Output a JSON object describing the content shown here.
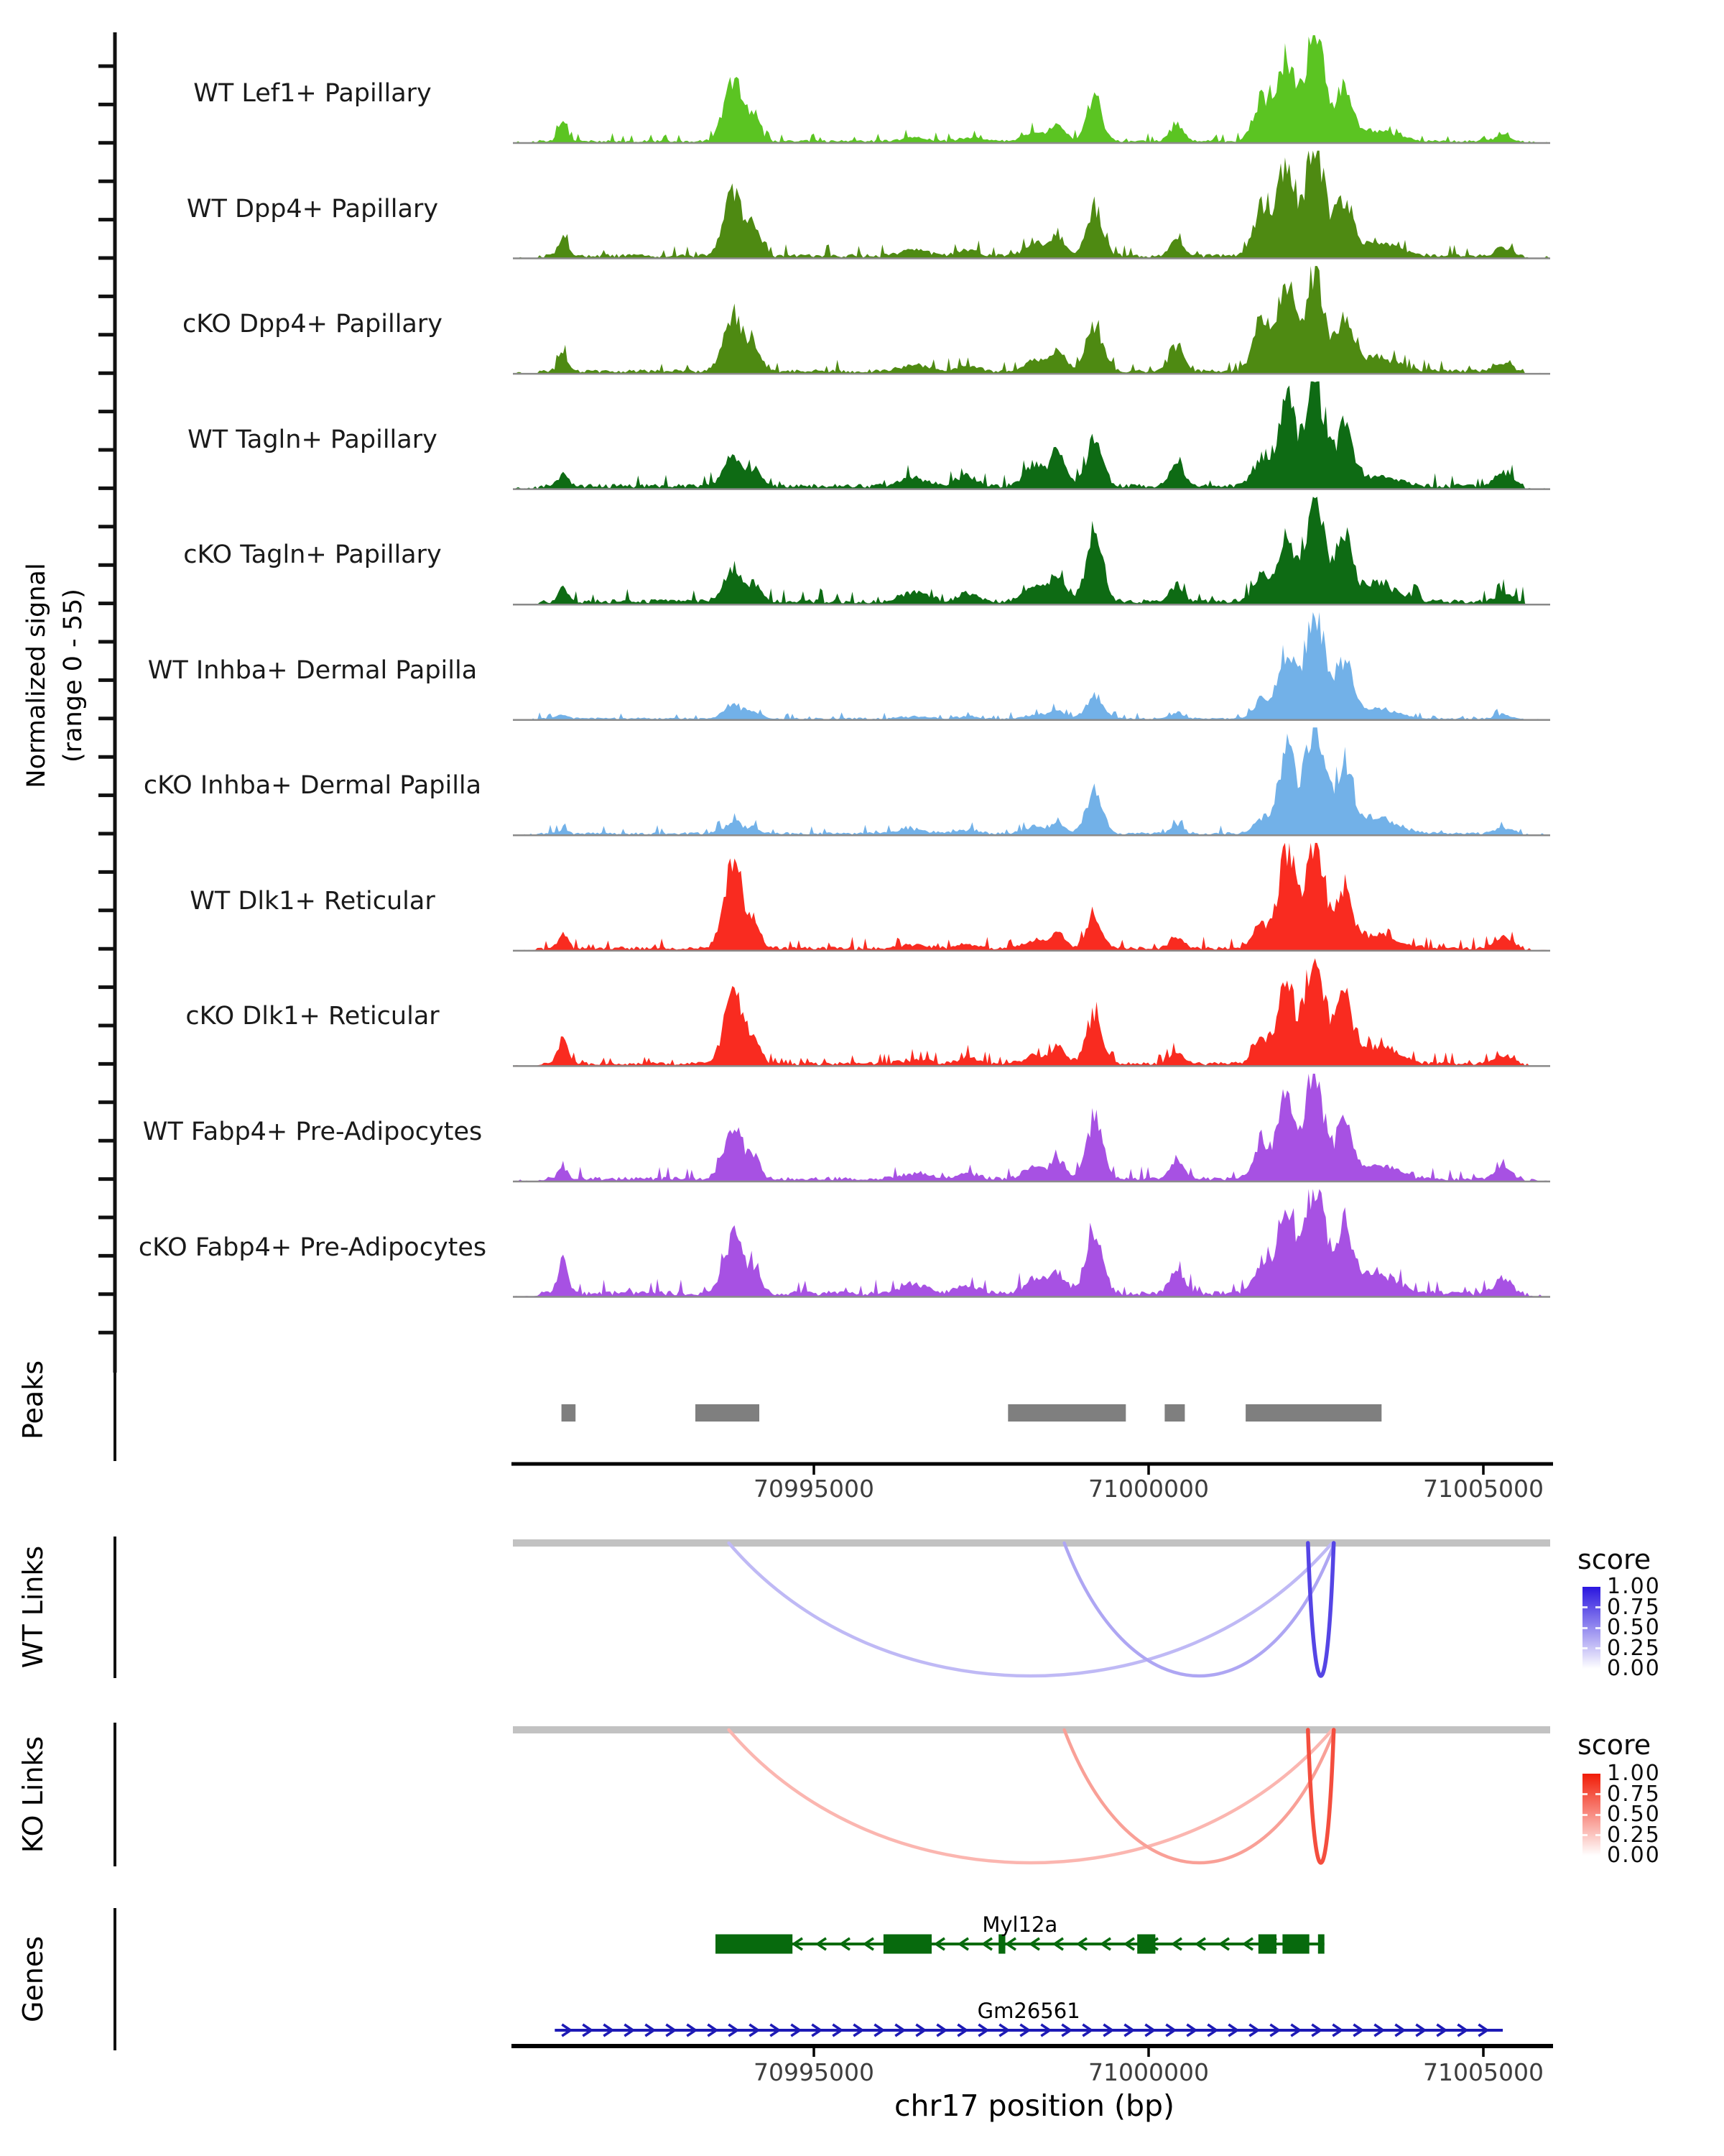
{
  "chart_data": {
    "type": "genome-tracks",
    "region": {
      "chrom": "chr17",
      "start": 70990500,
      "end": 71006000
    },
    "axis": {
      "title": "chr17 position (bp)",
      "ticks": [
        70995000,
        71000000,
        71005000
      ],
      "tick_labels": [
        "70995000",
        "71000000",
        "71005000"
      ]
    },
    "signal": {
      "ylabel_line1": "Normalized signal",
      "ylabel_line2": "(range 0 - 55)",
      "ymax": 55,
      "baseline_color": "#8a8a8a",
      "tracks": [
        {
          "label": "WT Lef1+ Papillary",
          "color": "#5bc422",
          "noise": 1.4,
          "peaks": [
            [
              70991250,
              70,
              9
            ],
            [
              70993800,
              140,
              30
            ],
            [
              70994120,
              90,
              12
            ],
            [
              70996500,
              200,
              2
            ],
            [
              70997300,
              150,
              2
            ],
            [
              70998300,
              160,
              5
            ],
            [
              70998650,
              110,
              8
            ],
            [
              70999190,
              120,
              20
            ],
            [
              71000420,
              100,
              9
            ],
            [
              71001700,
              130,
              22
            ],
            [
              71002060,
              120,
              42
            ],
            [
              71002480,
              140,
              55
            ],
            [
              71002920,
              120,
              26
            ],
            [
              71003400,
              300,
              5
            ],
            [
              71005300,
              120,
              3
            ]
          ]
        },
        {
          "label": "WT Dpp4+ Papillary",
          "color": "#4e8a12",
          "noise": 2.0,
          "peaks": [
            [
              70991250,
              70,
              9
            ],
            [
              70993800,
              140,
              32
            ],
            [
              70994120,
              90,
              14
            ],
            [
              70996500,
              200,
              3
            ],
            [
              70997300,
              150,
              3
            ],
            [
              70998300,
              160,
              6
            ],
            [
              70998650,
              110,
              9
            ],
            [
              70999190,
              120,
              24
            ],
            [
              71000420,
              100,
              8
            ],
            [
              71001700,
              130,
              24
            ],
            [
              71002060,
              120,
              46
            ],
            [
              71002480,
              140,
              57
            ],
            [
              71002920,
              120,
              28
            ],
            [
              71003400,
              300,
              7
            ],
            [
              71005300,
              120,
              4
            ]
          ]
        },
        {
          "label": "cKO Dpp4+ Papillary",
          "color": "#4e8a12",
          "noise": 2.0,
          "peaks": [
            [
              70991250,
              70,
              8
            ],
            [
              70993800,
              140,
              30
            ],
            [
              70994120,
              90,
              12
            ],
            [
              70996500,
              200,
              3
            ],
            [
              70997300,
              150,
              3
            ],
            [
              70998300,
              160,
              6
            ],
            [
              70998650,
              110,
              10
            ],
            [
              70999190,
              120,
              23
            ],
            [
              71000420,
              100,
              12
            ],
            [
              71001700,
              130,
              28
            ],
            [
              71002060,
              120,
              42
            ],
            [
              71002480,
              140,
              52
            ],
            [
              71002920,
              120,
              26
            ],
            [
              71003400,
              300,
              7
            ],
            [
              71005300,
              120,
              4
            ]
          ]
        },
        {
          "label": "WT Tagln+ Papillary",
          "color": "#0e6b14",
          "noise": 2.4,
          "peaks": [
            [
              70991250,
              70,
              6
            ],
            [
              70993800,
              140,
              14
            ],
            [
              70994120,
              90,
              8
            ],
            [
              70996500,
              200,
              4
            ],
            [
              70997300,
              150,
              5
            ],
            [
              70998300,
              160,
              10
            ],
            [
              70998650,
              110,
              16
            ],
            [
              70999190,
              120,
              24
            ],
            [
              71000420,
              100,
              13
            ],
            [
              71001700,
              130,
              15
            ],
            [
              71002060,
              120,
              44
            ],
            [
              71002480,
              140,
              55
            ],
            [
              71002920,
              120,
              28
            ],
            [
              71003400,
              300,
              5
            ],
            [
              71005300,
              120,
              7
            ]
          ]
        },
        {
          "label": "cKO Tagln+ Papillary",
          "color": "#0e6b14",
          "noise": 2.4,
          "peaks": [
            [
              70991250,
              70,
              7
            ],
            [
              70993800,
              140,
              16
            ],
            [
              70994120,
              90,
              8
            ],
            [
              70996500,
              200,
              5
            ],
            [
              70997300,
              150,
              4
            ],
            [
              70998300,
              160,
              8
            ],
            [
              70998650,
              110,
              12
            ],
            [
              70999190,
              120,
              36
            ],
            [
              71000420,
              100,
              8
            ],
            [
              71001700,
              130,
              13
            ],
            [
              71002060,
              120,
              30
            ],
            [
              71002480,
              140,
              52
            ],
            [
              71002920,
              120,
              30
            ],
            [
              71003400,
              300,
              9
            ],
            [
              71005300,
              120,
              4
            ]
          ]
        },
        {
          "label": "WT Inhba+ Dermal Papilla",
          "color": "#72b1e8",
          "noise": 1.1,
          "peaks": [
            [
              70991250,
              70,
              2
            ],
            [
              70993800,
              140,
              7
            ],
            [
              70994120,
              90,
              3
            ],
            [
              70996500,
              200,
              1
            ],
            [
              70997300,
              150,
              1
            ],
            [
              70998300,
              160,
              2
            ],
            [
              70998650,
              110,
              4
            ],
            [
              70999190,
              120,
              11
            ],
            [
              71000420,
              100,
              3
            ],
            [
              71001700,
              130,
              10
            ],
            [
              71002060,
              120,
              34
            ],
            [
              71002480,
              140,
              55
            ],
            [
              71002920,
              120,
              28
            ],
            [
              71003400,
              300,
              5
            ],
            [
              71005300,
              120,
              2
            ]
          ]
        },
        {
          "label": "cKO Inhba+ Dermal Papilla",
          "color": "#72b1e8",
          "noise": 1.4,
          "peaks": [
            [
              70991250,
              70,
              2
            ],
            [
              70993800,
              140,
              6
            ],
            [
              70994120,
              90,
              3
            ],
            [
              70996500,
              200,
              2
            ],
            [
              70997300,
              150,
              2
            ],
            [
              70998300,
              160,
              3
            ],
            [
              70998650,
              110,
              5
            ],
            [
              70999190,
              120,
              21
            ],
            [
              71000420,
              100,
              4
            ],
            [
              71001700,
              130,
              8
            ],
            [
              71002060,
              120,
              42
            ],
            [
              71002480,
              140,
              55
            ],
            [
              71002920,
              120,
              34
            ],
            [
              71003400,
              300,
              8
            ],
            [
              71005300,
              120,
              3
            ]
          ]
        },
        {
          "label": "WT Dlk1+ Reticular",
          "color": "#f92b20",
          "noise": 1.9,
          "peaks": [
            [
              70991250,
              70,
              8
            ],
            [
              70993800,
              140,
              40
            ],
            [
              70994120,
              90,
              10
            ],
            [
              70996500,
              200,
              2
            ],
            [
              70997300,
              150,
              2
            ],
            [
              70998300,
              160,
              4
            ],
            [
              70998650,
              110,
              7
            ],
            [
              70999190,
              120,
              15
            ],
            [
              71000420,
              100,
              6
            ],
            [
              71001700,
              130,
              12
            ],
            [
              71002060,
              120,
              48
            ],
            [
              71002480,
              140,
              55
            ],
            [
              71002920,
              120,
              28
            ],
            [
              71003400,
              300,
              7
            ],
            [
              71005300,
              120,
              6
            ]
          ]
        },
        {
          "label": "cKO Dlk1+ Reticular",
          "color": "#f92b20",
          "noise": 1.9,
          "peaks": [
            [
              70991250,
              70,
              13
            ],
            [
              70993800,
              140,
              36
            ],
            [
              70994120,
              90,
              10
            ],
            [
              70996500,
              200,
              2
            ],
            [
              70997300,
              150,
              3
            ],
            [
              70998300,
              160,
              4
            ],
            [
              70998650,
              110,
              8
            ],
            [
              70999190,
              120,
              24
            ],
            [
              71000420,
              100,
              6
            ],
            [
              71001700,
              130,
              12
            ],
            [
              71002060,
              120,
              38
            ],
            [
              71002480,
              140,
              55
            ],
            [
              71002920,
              120,
              31
            ],
            [
              71003400,
              300,
              9
            ],
            [
              71005300,
              120,
              4
            ]
          ]
        },
        {
          "label": "WT Fabp4+ Pre-Adipocytes",
          "color": "#a751e3",
          "noise": 2.1,
          "peaks": [
            [
              70991250,
              70,
              6
            ],
            [
              70993800,
              140,
              28
            ],
            [
              70994120,
              90,
              9
            ],
            [
              70996500,
              200,
              3
            ],
            [
              70997300,
              150,
              3
            ],
            [
              70998300,
              160,
              6
            ],
            [
              70998650,
              110,
              9
            ],
            [
              70999190,
              120,
              29
            ],
            [
              71000420,
              100,
              10
            ],
            [
              71001700,
              130,
              17
            ],
            [
              71002060,
              120,
              40
            ],
            [
              71002480,
              140,
              55
            ],
            [
              71002920,
              120,
              24
            ],
            [
              71003400,
              300,
              7
            ],
            [
              71005300,
              120,
              6
            ]
          ]
        },
        {
          "label": "cKO Fabp4+ Pre-Adipocytes",
          "color": "#a751e3",
          "noise": 2.8,
          "peaks": [
            [
              70991250,
              70,
              16
            ],
            [
              70993800,
              140,
              29
            ],
            [
              70994120,
              90,
              10
            ],
            [
              70996500,
              200,
              5
            ],
            [
              70997300,
              150,
              4
            ],
            [
              70998300,
              160,
              7
            ],
            [
              70998650,
              110,
              10
            ],
            [
              70999190,
              120,
              34
            ],
            [
              71000420,
              100,
              12
            ],
            [
              71001700,
              130,
              15
            ],
            [
              71002060,
              120,
              46
            ],
            [
              71002480,
              140,
              55
            ],
            [
              71002920,
              120,
              33
            ],
            [
              71003400,
              300,
              10
            ],
            [
              71005300,
              120,
              7
            ]
          ]
        }
      ]
    },
    "peaks": {
      "label": "Peaks",
      "color": "#7f7f7f",
      "boxes": [
        [
          70991230,
          70991440
        ],
        [
          70993230,
          70994185
        ],
        [
          70997900,
          70999660
        ],
        [
          71000240,
          71000540
        ],
        [
          71001450,
          71003480
        ]
      ]
    },
    "links": {
      "wt": {
        "label": "WT Links",
        "legend_title": "score",
        "legend_labels": [
          "1.00",
          "0.75",
          "0.50",
          "0.25",
          "0.00"
        ],
        "max_color": "#2a16df",
        "bar_color": "#c2c2c2",
        "links": [
          {
            "start": 70993730,
            "end": 71002740,
            "score": 0.3
          },
          {
            "start": 70998740,
            "end": 71002775,
            "score": 0.38
          },
          {
            "start": 71002380,
            "end": 71002765,
            "score": 0.8
          }
        ]
      },
      "ko": {
        "label": "KO Links",
        "legend_title": "score",
        "legend_labels": [
          "1.00",
          "0.75",
          "0.50",
          "0.25",
          "0.00"
        ],
        "max_color": "#f11c07",
        "bar_color": "#c2c2c2",
        "links": [
          {
            "start": 70993730,
            "end": 71002740,
            "score": 0.32
          },
          {
            "start": 70998740,
            "end": 71002775,
            "score": 0.42
          },
          {
            "start": 71002380,
            "end": 71002765,
            "score": 0.78
          }
        ]
      }
    },
    "genes": {
      "label": "Genes",
      "items": [
        {
          "name": "Myl12a",
          "color": "#076a0d",
          "strand": "-",
          "start": 70993530,
          "end": 71002625,
          "exons": [
            [
              70993530,
              70994680
            ],
            [
              70996040,
              70996760
            ],
            [
              70997760,
              70997860
            ],
            [
              70999830,
              71000100
            ],
            [
              71001640,
              71001910
            ],
            [
              71002000,
              71002400
            ],
            [
              71002530,
              71002625
            ]
          ]
        },
        {
          "name": "Gm26561",
          "color": "#1d1ab5",
          "strand": "+",
          "start": 70991130,
          "end": 71005290,
          "exons": []
        }
      ]
    }
  }
}
